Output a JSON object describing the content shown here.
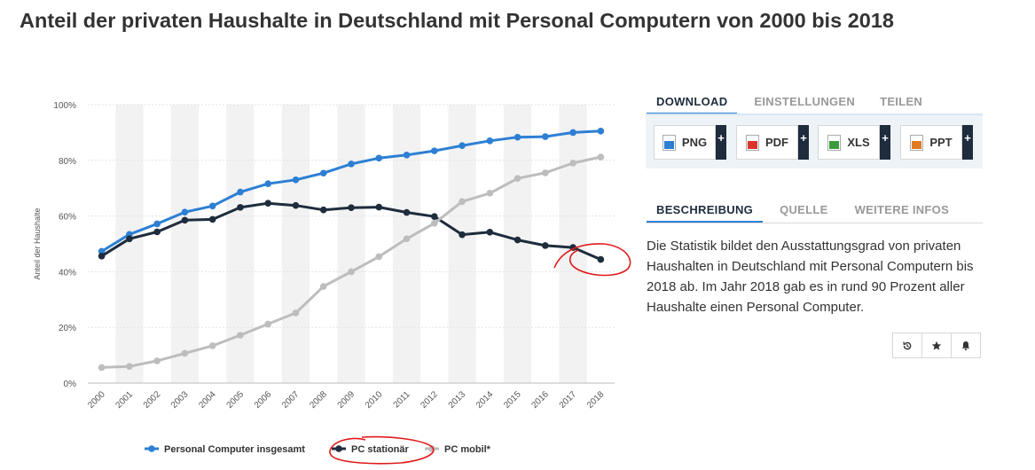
{
  "page_title": "Anteil der privaten Haushalte in Deutschland mit Personal Computern von 2000 bis 2018",
  "colors": {
    "accent": "#2d7fd4",
    "dark": "#1e2c3d",
    "grey": "#bdbdbd",
    "annotation": "#e01b1b"
  },
  "chart_data": {
    "type": "line",
    "title": "Anteil der privaten Haushalte in Deutschland mit Personal Computern von 2000 bis 2018",
    "xlabel": "",
    "ylabel": "Anteil der Haushalte",
    "categories": [
      "2000",
      "2001",
      "2002",
      "2003",
      "2004",
      "2005",
      "2006",
      "2007",
      "2008",
      "2009",
      "2010",
      "2011",
      "2012",
      "2013",
      "2014",
      "2015",
      "2016",
      "2017",
      "2018"
    ],
    "ylim": [
      0,
      100
    ],
    "yticks": [
      "0%",
      "20%",
      "40%",
      "60%",
      "80%",
      "100%"
    ],
    "grid": true,
    "legend_position": "bottom",
    "series": [
      {
        "name": "Personal Computer insgesamt",
        "color": "#2d7fd4",
        "values": [
          47.3,
          53.4,
          57.2,
          61.4,
          63.6,
          68.6,
          71.6,
          73.0,
          75.4,
          78.7,
          80.8,
          81.9,
          83.4,
          85.3,
          87.0,
          88.3,
          88.5,
          90.0,
          90.5
        ]
      },
      {
        "name": "PC stationär",
        "color": "#1e2c3d",
        "values": [
          45.6,
          51.8,
          54.3,
          58.5,
          58.8,
          63.1,
          64.6,
          63.8,
          62.2,
          63.0,
          63.2,
          61.3,
          59.8,
          53.3,
          54.2,
          51.4,
          49.4,
          48.7,
          44.4
        ]
      },
      {
        "name": "PC mobil*",
        "color": "#bdbdbd",
        "values": [
          5.6,
          6.0,
          8.0,
          10.7,
          13.4,
          17.2,
          21.2,
          25.2,
          34.7,
          40.0,
          45.4,
          51.8,
          57.4,
          65.2,
          68.2,
          73.5,
          75.5,
          79.0,
          81.2
        ]
      }
    ]
  },
  "download": {
    "tabs": [
      "DOWNLOAD",
      "EINSTELLUNGEN",
      "TEILEN"
    ],
    "buttons": [
      {
        "label": "PNG",
        "icon": "png-file-icon"
      },
      {
        "label": "PDF",
        "icon": "pdf-file-icon"
      },
      {
        "label": "XLS",
        "icon": "xls-file-icon"
      },
      {
        "label": "PPT",
        "icon": "ppt-file-icon"
      }
    ],
    "plus_label": "+"
  },
  "info": {
    "tabs": [
      "BESCHREIBUNG",
      "QUELLE",
      "WEITERE INFOS"
    ],
    "description": "Die Statistik bildet den Ausstattungsgrad von privaten Haushalten in Deutschland mit Personal Computern bis 2018 ab. Im Jahr 2018 gab es in rund 90 Prozent aller Haushalte einen Personal Computer."
  },
  "actions": [
    {
      "icon": "history-icon"
    },
    {
      "icon": "star-icon"
    },
    {
      "icon": "bell-icon"
    }
  ]
}
